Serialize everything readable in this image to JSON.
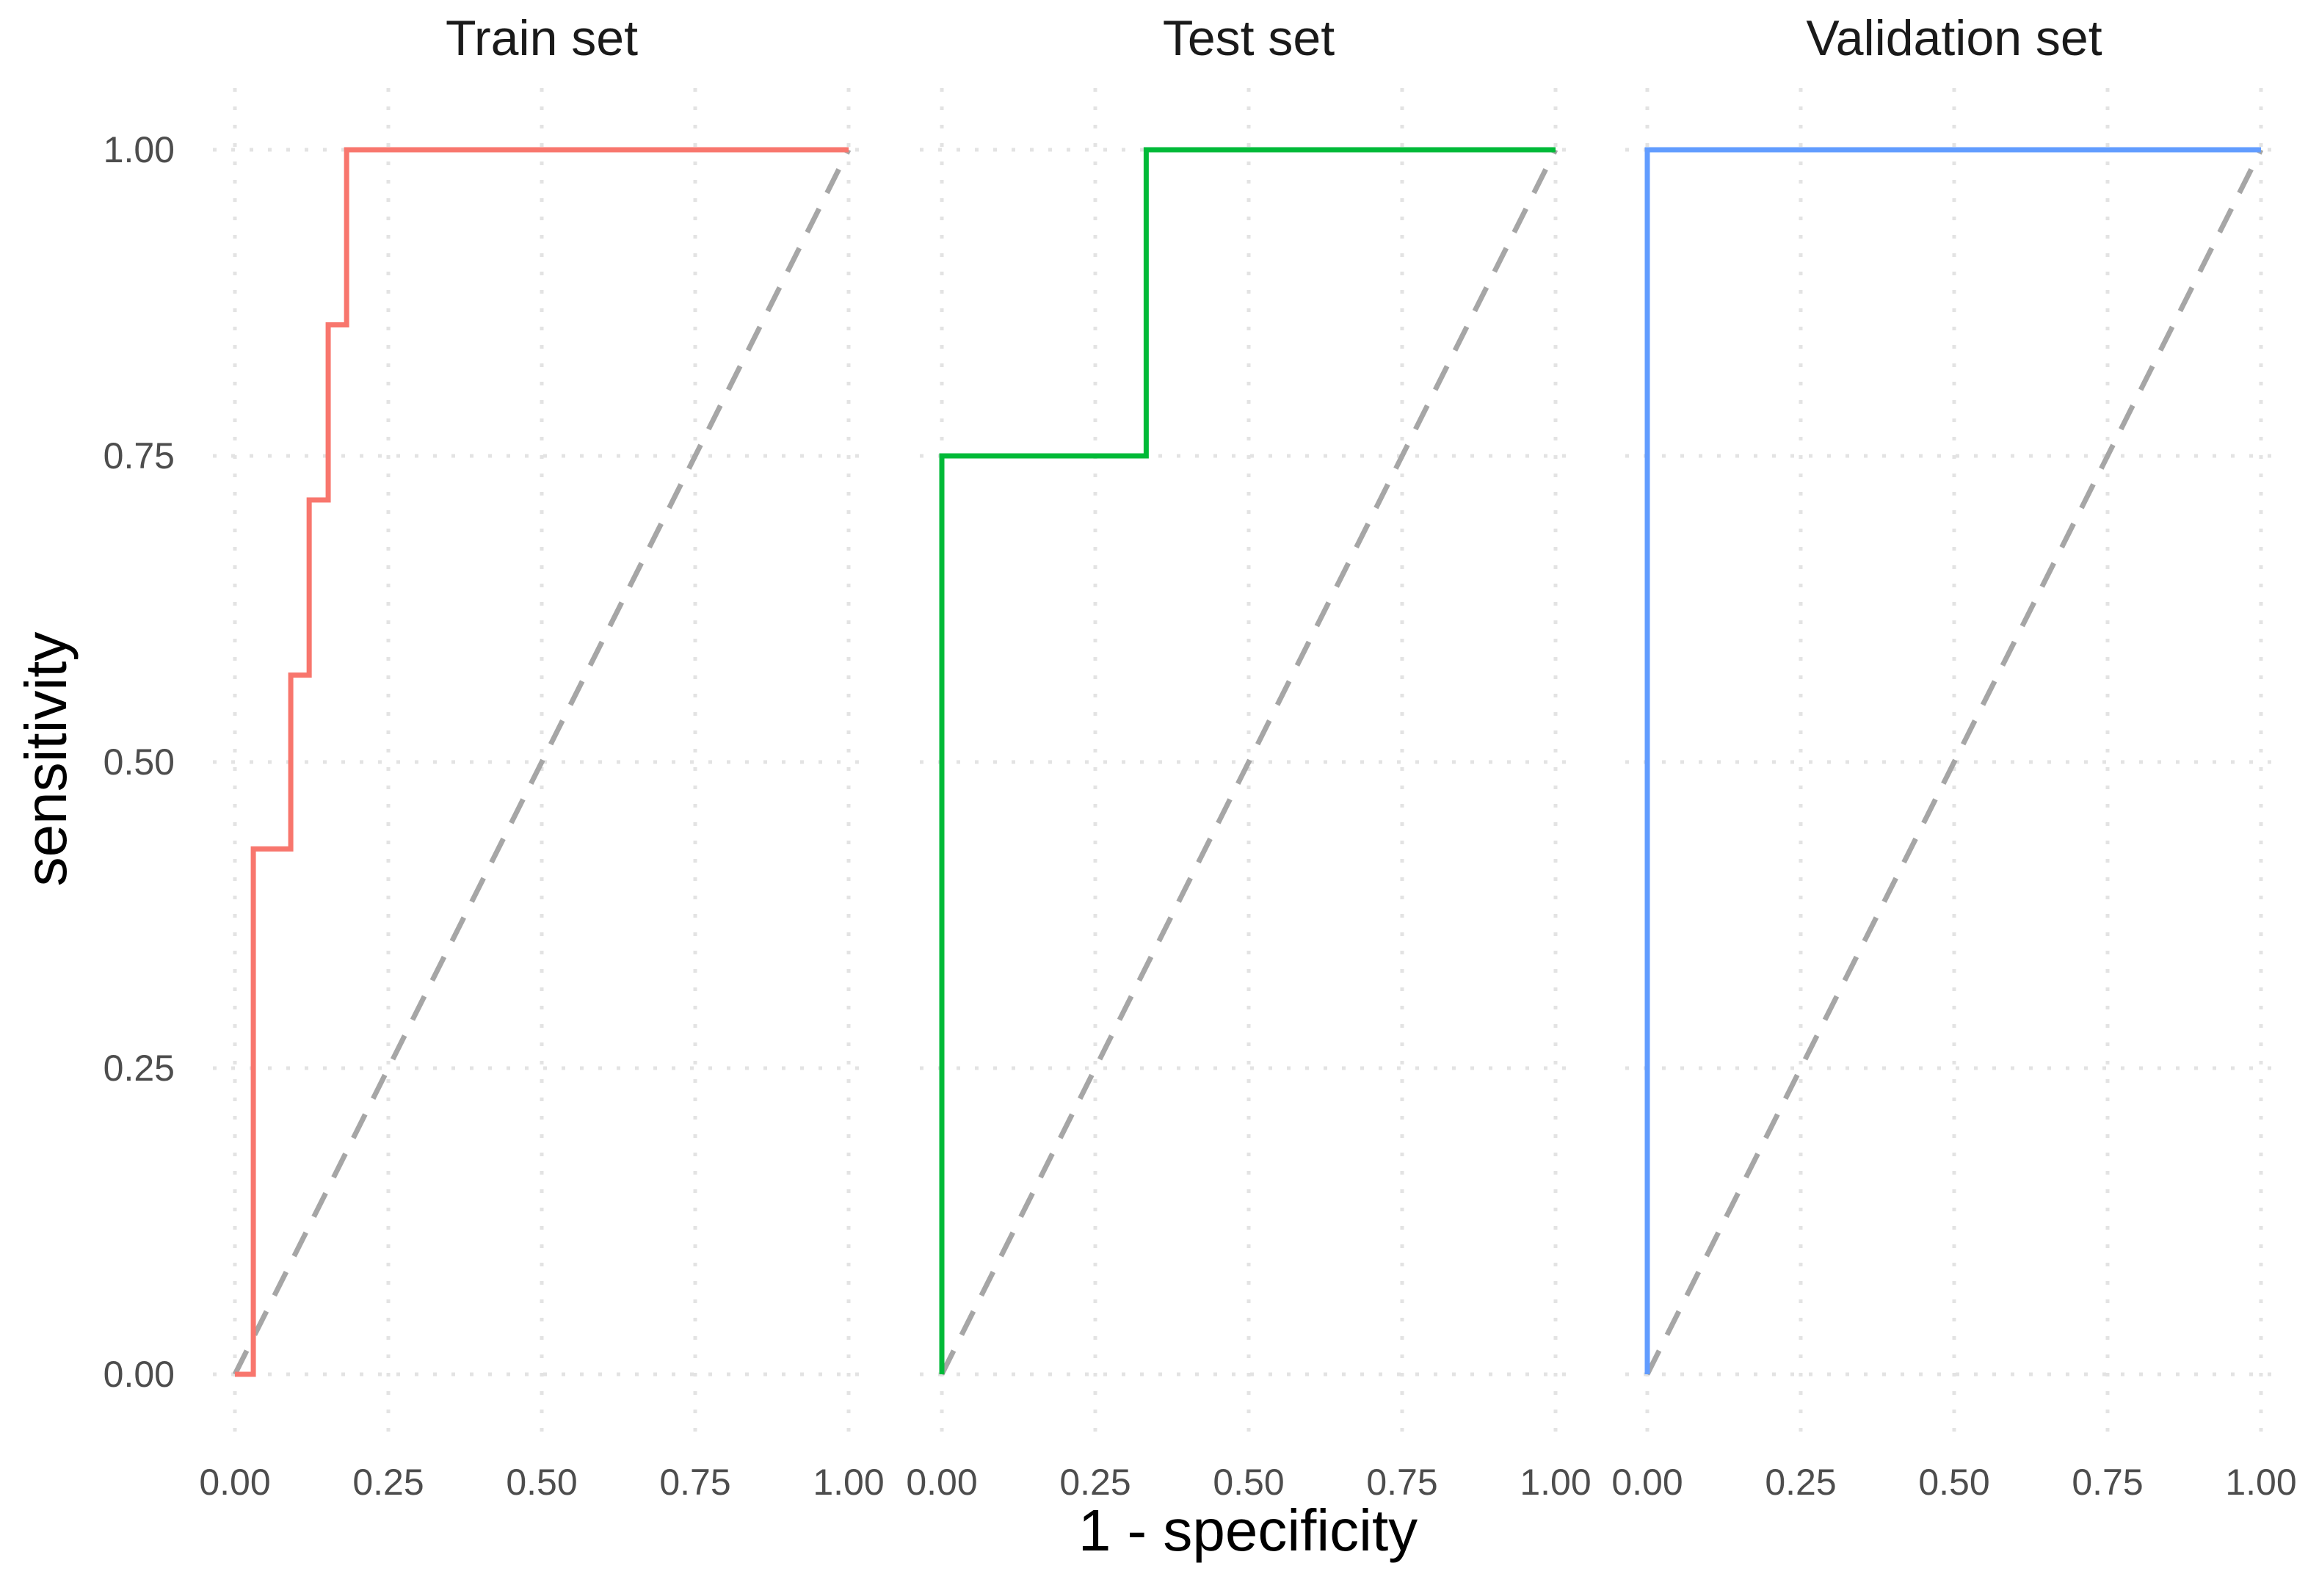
{
  "chart_data": {
    "type": "line",
    "xlabel": "1 - specificity",
    "ylabel": "sensitivity",
    "xlim": [
      0,
      1
    ],
    "ylim": [
      0,
      1
    ],
    "x_ticks": [
      0,
      0.25,
      0.5,
      0.75,
      1
    ],
    "x_tick_labels": [
      "0.00",
      "0.25",
      "0.50",
      "0.75",
      "1.00"
    ],
    "y_ticks": [
      0,
      0.25,
      0.5,
      0.75,
      1
    ],
    "y_tick_labels": [
      "0.00",
      "0.25",
      "0.50",
      "0.75",
      "1.00"
    ],
    "grid": true,
    "reference_line": {
      "style": "dashed",
      "color": "#a6a6a6",
      "points": [
        [
          0,
          0
        ],
        [
          1,
          1
        ]
      ]
    },
    "panels": [
      {
        "name": "Train set",
        "color": "#F8766D",
        "points": [
          [
            0,
            0
          ],
          [
            0.03,
            0
          ],
          [
            0.03,
            0.429
          ],
          [
            0.091,
            0.429
          ],
          [
            0.091,
            0.571
          ],
          [
            0.121,
            0.571
          ],
          [
            0.121,
            0.714
          ],
          [
            0.152,
            0.714
          ],
          [
            0.152,
            0.857
          ],
          [
            0.182,
            0.857
          ],
          [
            0.182,
            1
          ],
          [
            1,
            1
          ]
        ]
      },
      {
        "name": "Test set",
        "color": "#00BA38",
        "points": [
          [
            0,
            0
          ],
          [
            0,
            0.75
          ],
          [
            0.333,
            0.75
          ],
          [
            0.333,
            1
          ],
          [
            1,
            1
          ]
        ]
      },
      {
        "name": "Validation set",
        "color": "#619CFF",
        "points": [
          [
            0,
            0
          ],
          [
            0,
            1
          ],
          [
            1,
            1
          ]
        ]
      }
    ]
  }
}
